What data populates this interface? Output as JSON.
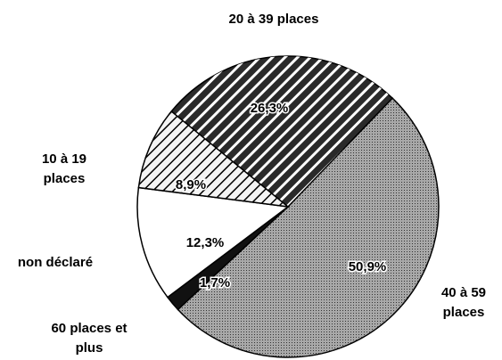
{
  "chart_data": {
    "type": "pie",
    "categories": [
      "20 à 39 places",
      "40 à 59 places",
      "60 places et plus",
      "non déclaré",
      "10 à 19 places"
    ],
    "values": [
      26.3,
      50.9,
      1.7,
      12.3,
      8.9
    ],
    "value_labels": [
      "26,3%",
      "50,9%",
      "1,7%",
      "12,3%",
      "8,9%"
    ],
    "colors": [
      "#2a2a2a",
      "#a8a8a8",
      "#111111",
      "#ffffff",
      "#f4f4f4"
    ]
  }
}
